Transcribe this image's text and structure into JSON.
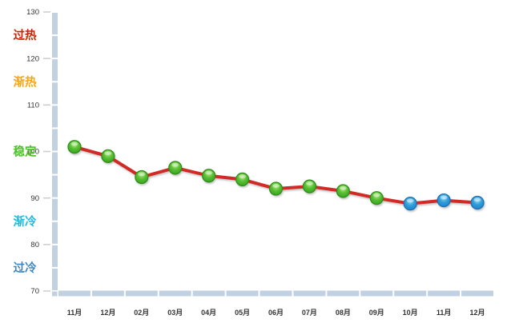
{
  "chart_data": {
    "type": "line",
    "title": "",
    "categories": [
      "11月",
      "12月",
      "02月",
      "03月",
      "04月",
      "05月",
      "06月",
      "07月",
      "08月",
      "09月",
      "10月",
      "11月",
      "12月"
    ],
    "series": [
      {
        "name": "index-line",
        "values": [
          101,
          99,
          94.5,
          96.5,
          94.8,
          94,
          92,
          92.5,
          91.5,
          90,
          88.8,
          89.5,
          89
        ],
        "line_color": "#d22b26",
        "marker_colors": [
          "green",
          "green",
          "green",
          "green",
          "green",
          "green",
          "green",
          "green",
          "green",
          "green",
          "blue",
          "blue",
          "blue"
        ]
      }
    ],
    "marker_styles": {
      "green": {
        "top": "#aee87e",
        "mid": "#55bd31",
        "bottom": "#2f9b1a",
        "stroke": "#2e8c18"
      },
      "blue": {
        "top": "#8ed8f2",
        "mid": "#2f9bd8",
        "bottom": "#1b7ec6",
        "stroke": "#1a6fae"
      }
    },
    "xlabel": "",
    "ylabel": "",
    "ylim": [
      70,
      130
    ],
    "y_ticks": [
      70,
      80,
      90,
      100,
      110,
      120,
      130
    ],
    "y_minor_step": 5,
    "zones": [
      {
        "label": "过热",
        "color": "#cc2200",
        "range": [
          120,
          130
        ]
      },
      {
        "label": "渐热",
        "color": "#f7a60e",
        "range": [
          110,
          120
        ]
      },
      {
        "label": "稳定",
        "color": "#49c322",
        "range": [
          90,
          110
        ]
      },
      {
        "label": "渐冷",
        "color": "#1fb9e0",
        "range": [
          80,
          90
        ]
      },
      {
        "label": "过冷",
        "color": "#3d87c4",
        "range": [
          70,
          80
        ]
      }
    ],
    "threshold_lines": [
      {
        "value": 130,
        "color": "#d22b26",
        "nudge": 0
      },
      {
        "value": 120,
        "color": "#f8a91c",
        "nudge": 0
      },
      {
        "value": 110,
        "color": "#6ece37",
        "nudge": 0
      },
      {
        "value": 90,
        "color": "#6ece37",
        "nudge": -1.6
      },
      {
        "value": 90,
        "color": "#2fc9e8",
        "nudge": 1.6
      },
      {
        "value": 80,
        "color": "#4a9ed6",
        "nudge": 0
      }
    ],
    "grid": false,
    "legend_position": "none",
    "axis_band_color": "#c2d1e2",
    "tick_mark_color": "#cccccc",
    "tick_label_color": "#333333",
    "background": "#ffffff"
  }
}
